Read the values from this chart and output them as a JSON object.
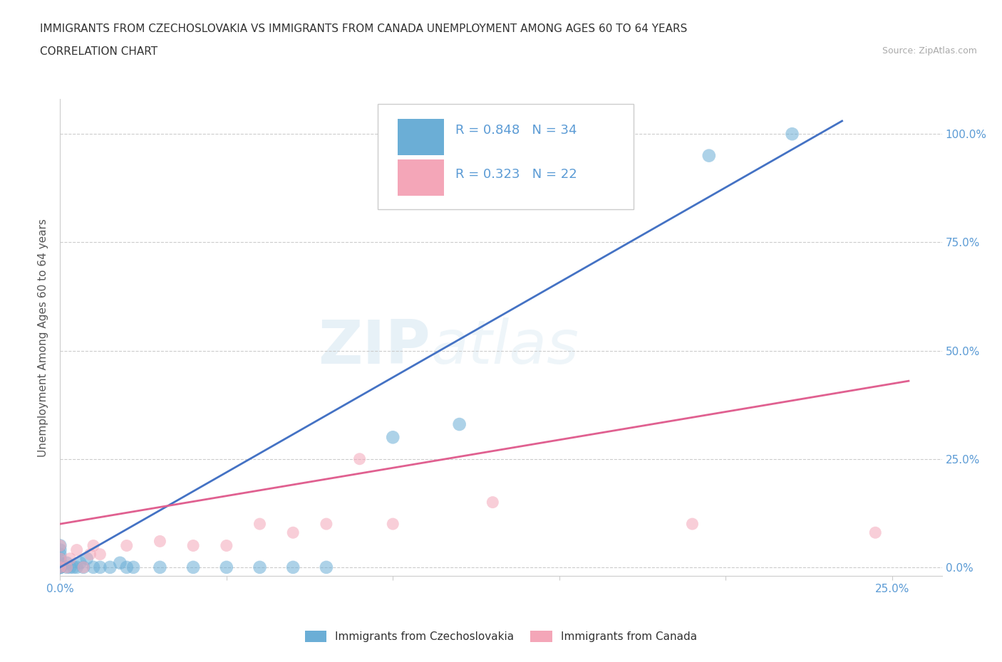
{
  "title_line1": "IMMIGRANTS FROM CZECHOSLOVAKIA VS IMMIGRANTS FROM CANADA UNEMPLOYMENT AMONG AGES 60 TO 64 YEARS",
  "title_line2": "CORRELATION CHART",
  "source_text": "Source: ZipAtlas.com",
  "ylabel": "Unemployment Among Ages 60 to 64 years",
  "xlim": [
    0.0,
    0.265
  ],
  "ylim": [
    -0.02,
    1.08
  ],
  "xticks": [
    0.0,
    0.05,
    0.1,
    0.15,
    0.2,
    0.25
  ],
  "xtick_labels": [
    "0.0%",
    "",
    "",
    "",
    "",
    "25.0%"
  ],
  "yticks": [
    0.0,
    0.25,
    0.5,
    0.75,
    1.0
  ],
  "ytick_labels": [
    "0.0%",
    "25.0%",
    "50.0%",
    "75.0%",
    "100.0%"
  ],
  "color_blue": "#6baed6",
  "color_pink": "#f4a6b8",
  "legend_blue_R": "R = 0.848",
  "legend_blue_N": "N = 34",
  "legend_pink_R": "R = 0.323",
  "legend_pink_N": "N = 22",
  "legend_label_blue": "Immigrants from Czechoslovakia",
  "legend_label_pink": "Immigrants from Canada",
  "watermark_zip": "ZIP",
  "watermark_atlas": "atlas",
  "blue_scatter_x": [
    0.0,
    0.0,
    0.0,
    0.0,
    0.0,
    0.0,
    0.0,
    0.0,
    0.0,
    0.0,
    0.002,
    0.002,
    0.003,
    0.004,
    0.005,
    0.006,
    0.007,
    0.008,
    0.01,
    0.012,
    0.015,
    0.018,
    0.02,
    0.022,
    0.03,
    0.04,
    0.05,
    0.06,
    0.07,
    0.08,
    0.1,
    0.12,
    0.195,
    0.22
  ],
  "blue_scatter_y": [
    0.0,
    0.0,
    0.0,
    0.0,
    0.0,
    0.01,
    0.02,
    0.03,
    0.04,
    0.05,
    0.0,
    0.01,
    0.0,
    0.0,
    0.0,
    0.01,
    0.0,
    0.02,
    0.0,
    0.0,
    0.0,
    0.01,
    0.0,
    0.0,
    0.0,
    0.0,
    0.0,
    0.0,
    0.0,
    0.0,
    0.3,
    0.33,
    0.95,
    1.0
  ],
  "pink_scatter_x": [
    0.0,
    0.0,
    0.0,
    0.002,
    0.003,
    0.005,
    0.007,
    0.009,
    0.01,
    0.012,
    0.02,
    0.03,
    0.04,
    0.05,
    0.06,
    0.07,
    0.08,
    0.09,
    0.1,
    0.13,
    0.19,
    0.245
  ],
  "pink_scatter_y": [
    0.0,
    0.02,
    0.05,
    0.0,
    0.02,
    0.04,
    0.0,
    0.03,
    0.05,
    0.03,
    0.05,
    0.06,
    0.05,
    0.05,
    0.1,
    0.08,
    0.1,
    0.25,
    0.1,
    0.15,
    0.1,
    0.08
  ],
  "blue_line_x": [
    0.0,
    0.235
  ],
  "blue_line_y": [
    0.0,
    1.03
  ],
  "pink_line_x": [
    0.0,
    0.255
  ],
  "pink_line_y": [
    0.1,
    0.43
  ],
  "grid_color": "#cccccc",
  "bg_color": "#ffffff",
  "axis_color": "#cccccc",
  "title_fontsize": 11,
  "ylabel_fontsize": 11,
  "scatter_size_blue": 180,
  "scatter_size_pink": 150,
  "scatter_alpha": 0.55
}
